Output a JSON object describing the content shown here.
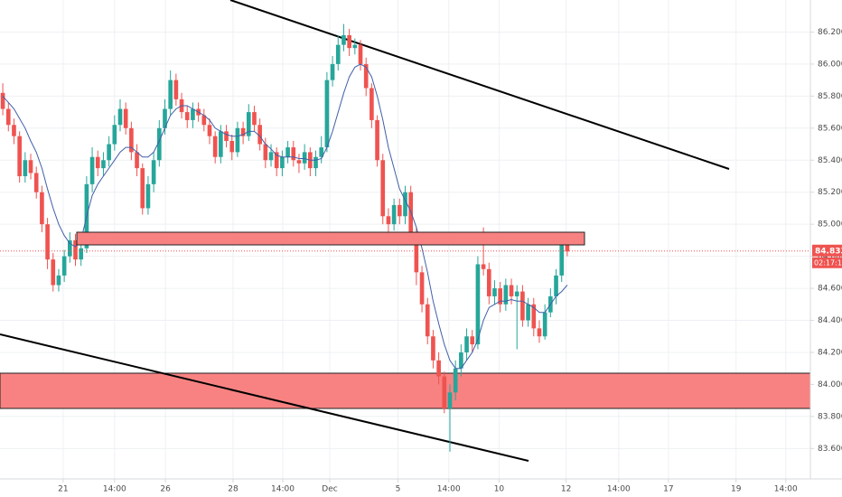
{
  "chart_data": {
    "type": "candlestick",
    "x": [
      0,
      1,
      2,
      3,
      4,
      5,
      6,
      7,
      8,
      9,
      10,
      11,
      12,
      13,
      14,
      15,
      16,
      17,
      18,
      19,
      20,
      21,
      22,
      23,
      24,
      25,
      26,
      27,
      28,
      29,
      30,
      31,
      32,
      33,
      34,
      35,
      36,
      37,
      38,
      39,
      40,
      41,
      42,
      43,
      44,
      45,
      46,
      47,
      48,
      49,
      50,
      51,
      52,
      53,
      54,
      55,
      56,
      57,
      58,
      59,
      60,
      61,
      62,
      63,
      64,
      65,
      66,
      67,
      68,
      69,
      70,
      71,
      72,
      73,
      74,
      75,
      76,
      77,
      78,
      79,
      80,
      81,
      82,
      83,
      84,
      85,
      86,
      87,
      88,
      89,
      90,
      91,
      92,
      93,
      94,
      95,
      96,
      97,
      98,
      99,
      100,
      101
    ],
    "open": [
      85.82,
      85.72,
      85.62,
      85.55,
      85.3,
      85.4,
      85.32,
      85.2,
      85.0,
      84.78,
      84.62,
      84.68,
      84.8,
      84.9,
      84.78,
      84.85,
      85.25,
      85.42,
      85.35,
      85.4,
      85.5,
      85.62,
      85.72,
      85.6,
      85.45,
      85.35,
      85.1,
      85.25,
      85.4,
      85.6,
      85.72,
      85.9,
      85.78,
      85.7,
      85.65,
      85.72,
      85.68,
      85.62,
      85.55,
      85.42,
      85.58,
      85.52,
      85.45,
      85.6,
      85.55,
      85.7,
      85.62,
      85.5,
      85.4,
      85.45,
      85.35,
      85.42,
      85.48,
      85.4,
      85.38,
      85.45,
      85.35,
      85.42,
      85.48,
      85.9,
      86.0,
      86.12,
      86.18,
      86.1,
      86.12,
      86.0,
      85.85,
      85.65,
      85.4,
      85.05,
      85.0,
      85.12,
      85.05,
      85.2,
      84.95,
      84.7,
      84.5,
      84.3,
      84.15,
      84.05,
      83.85,
      83.95,
      84.1,
      84.2,
      84.3,
      84.25,
      84.75,
      84.72,
      84.55,
      84.6,
      84.5,
      84.62,
      84.55,
      84.58,
      84.4,
      84.5,
      84.35,
      84.3,
      84.45,
      84.55,
      84.68,
      84.88
    ],
    "high": [
      85.88,
      85.76,
      85.66,
      85.58,
      85.45,
      85.44,
      85.36,
      85.24,
      85.04,
      84.82,
      84.72,
      84.84,
      84.95,
      84.94,
      84.9,
      85.3,
      85.48,
      85.46,
      85.45,
      85.55,
      85.68,
      85.78,
      85.76,
      85.64,
      85.5,
      85.38,
      85.3,
      85.45,
      85.65,
      85.78,
      85.96,
      85.94,
      85.82,
      85.74,
      85.76,
      85.76,
      85.72,
      85.66,
      85.58,
      85.62,
      85.62,
      85.56,
      85.64,
      85.64,
      85.75,
      85.74,
      85.66,
      85.54,
      85.5,
      85.48,
      85.46,
      85.52,
      85.52,
      85.44,
      85.5,
      85.48,
      85.46,
      85.55,
      85.95,
      86.05,
      86.18,
      86.25,
      86.22,
      86.16,
      86.15,
      86.04,
      85.88,
      85.68,
      85.44,
      85.1,
      85.16,
      85.16,
      85.24,
      85.24,
      84.98,
      84.74,
      84.54,
      84.34,
      84.2,
      84.08,
      84.0,
      84.15,
      84.25,
      84.35,
      84.34,
      84.8,
      84.98,
      84.76,
      84.65,
      84.64,
      84.66,
      84.66,
      84.62,
      84.62,
      84.54,
      84.54,
      84.4,
      84.5,
      84.6,
      84.72,
      84.9,
      84.9
    ],
    "low": [
      85.68,
      85.58,
      85.5,
      85.26,
      85.26,
      85.28,
      85.16,
      84.95,
      84.72,
      84.58,
      84.58,
      84.64,
      84.76,
      84.74,
      84.74,
      84.82,
      85.2,
      85.3,
      85.3,
      85.36,
      85.46,
      85.58,
      85.56,
      85.4,
      85.3,
      85.06,
      85.06,
      85.2,
      85.36,
      85.56,
      85.68,
      85.74,
      85.66,
      85.6,
      85.6,
      85.64,
      85.58,
      85.5,
      85.38,
      85.38,
      85.48,
      85.4,
      85.42,
      85.5,
      85.52,
      85.58,
      85.46,
      85.35,
      85.36,
      85.3,
      85.3,
      85.38,
      85.36,
      85.32,
      85.34,
      85.3,
      85.3,
      85.38,
      85.45,
      85.86,
      85.96,
      86.08,
      86.05,
      86.06,
      85.96,
      85.8,
      85.6,
      85.36,
      85.0,
      84.95,
      84.96,
      85.0,
      85.0,
      84.9,
      84.62,
      84.45,
      84.25,
      84.1,
      84.0,
      83.82,
      83.58,
      83.9,
      84.05,
      84.15,
      84.2,
      84.22,
      84.68,
      84.5,
      84.5,
      84.45,
      84.46,
      84.5,
      84.22,
      84.36,
      84.36,
      84.3,
      84.26,
      84.28,
      84.42,
      84.5,
      84.64,
      84.8
    ],
    "close": [
      85.72,
      85.62,
      85.55,
      85.3,
      85.4,
      85.32,
      85.2,
      85.0,
      84.78,
      84.62,
      84.68,
      84.8,
      84.9,
      84.78,
      84.85,
      85.25,
      85.42,
      85.35,
      85.4,
      85.5,
      85.62,
      85.72,
      85.6,
      85.45,
      85.35,
      85.1,
      85.25,
      85.4,
      85.6,
      85.72,
      85.9,
      85.78,
      85.7,
      85.65,
      85.72,
      85.68,
      85.62,
      85.55,
      85.42,
      85.58,
      85.52,
      85.45,
      85.6,
      85.55,
      85.7,
      85.62,
      85.5,
      85.4,
      85.45,
      85.35,
      85.42,
      85.48,
      85.4,
      85.38,
      85.45,
      85.35,
      85.42,
      85.48,
      85.9,
      86.0,
      86.12,
      86.18,
      86.1,
      86.12,
      86.0,
      85.85,
      85.65,
      85.4,
      85.05,
      85.0,
      85.12,
      85.05,
      85.2,
      84.95,
      84.7,
      84.5,
      84.3,
      84.15,
      84.05,
      83.85,
      83.95,
      84.1,
      84.2,
      84.3,
      84.25,
      84.75,
      84.72,
      84.55,
      84.6,
      84.5,
      84.62,
      84.55,
      84.58,
      84.4,
      84.5,
      84.35,
      84.3,
      84.45,
      84.55,
      84.68,
      84.88,
      84.83
    ],
    "ma": [
      85.8,
      85.76,
      85.72,
      85.66,
      85.6,
      85.52,
      85.45,
      85.35,
      85.22,
      85.1,
      85.0,
      84.93,
      84.88,
      84.86,
      84.9,
      85.05,
      85.18,
      85.25,
      85.3,
      85.35,
      85.4,
      85.45,
      85.48,
      85.48,
      85.45,
      85.42,
      85.42,
      85.45,
      85.52,
      85.6,
      85.68,
      85.72,
      85.74,
      85.74,
      85.72,
      85.7,
      85.68,
      85.65,
      85.6,
      85.58,
      85.56,
      85.55,
      85.55,
      85.56,
      85.58,
      85.58,
      85.55,
      85.5,
      85.47,
      85.43,
      85.42,
      85.42,
      85.42,
      85.41,
      85.41,
      85.4,
      85.4,
      85.41,
      85.48,
      85.58,
      85.7,
      85.82,
      85.92,
      85.98,
      86.0,
      85.98,
      85.92,
      85.8,
      85.65,
      85.48,
      85.35,
      85.22,
      85.15,
      85.08,
      84.98,
      84.85,
      84.7,
      84.52,
      84.38,
      84.25,
      84.15,
      84.1,
      84.1,
      84.15,
      84.2,
      84.28,
      84.4,
      84.48,
      84.5,
      84.52,
      84.52,
      84.53,
      84.52,
      84.52,
      84.5,
      84.48,
      84.45,
      84.45,
      84.5,
      84.55,
      84.58,
      84.62
    ],
    "up_color": "#26a69a",
    "down_color": "#ef5350",
    "ma_color": "#3f5fa8",
    "last_price": 84.833,
    "countdown": "02:17:17",
    "xlim": [
      -0.5,
      144.5
    ],
    "ylim": [
      83.41,
      86.4
    ],
    "xticks": [
      {
        "value": 10.8,
        "label": "21"
      },
      {
        "value": 20.0,
        "label": "14:00"
      },
      {
        "value": 29.1,
        "label": "26"
      },
      {
        "value": 41.2,
        "label": "28"
      },
      {
        "value": 50.1,
        "label": "14:00"
      },
      {
        "value": 58.5,
        "label": "Dec"
      },
      {
        "value": 70.7,
        "label": "5"
      },
      {
        "value": 79.8,
        "label": "14:00"
      },
      {
        "value": 88.8,
        "label": "10"
      },
      {
        "value": 100.8,
        "label": "12"
      },
      {
        "value": 110.2,
        "label": "14:00"
      },
      {
        "value": 119.1,
        "label": "17"
      },
      {
        "value": 131.2,
        "label": "19"
      },
      {
        "value": 140.1,
        "label": "14:00"
      }
    ],
    "yticks": [
      {
        "value": 83.6,
        "label": "83.600"
      },
      {
        "value": 83.8,
        "label": "83.800"
      },
      {
        "value": 84.0,
        "label": "84.000"
      },
      {
        "value": 84.2,
        "label": "84.200"
      },
      {
        "value": 84.4,
        "label": "84.400"
      },
      {
        "value": 84.6,
        "label": "84.600"
      },
      {
        "value": 84.8,
        "label": "84.800"
      },
      {
        "value": 85.0,
        "label": "85.000"
      },
      {
        "value": 85.2,
        "label": "85.200"
      },
      {
        "value": 85.4,
        "label": "85.400"
      },
      {
        "value": 85.6,
        "label": "85.600"
      },
      {
        "value": 85.8,
        "label": "85.800"
      },
      {
        "value": 86.0,
        "label": "86.000"
      },
      {
        "value": 86.2,
        "label": "86.200"
      }
    ],
    "grid": true
  }
}
